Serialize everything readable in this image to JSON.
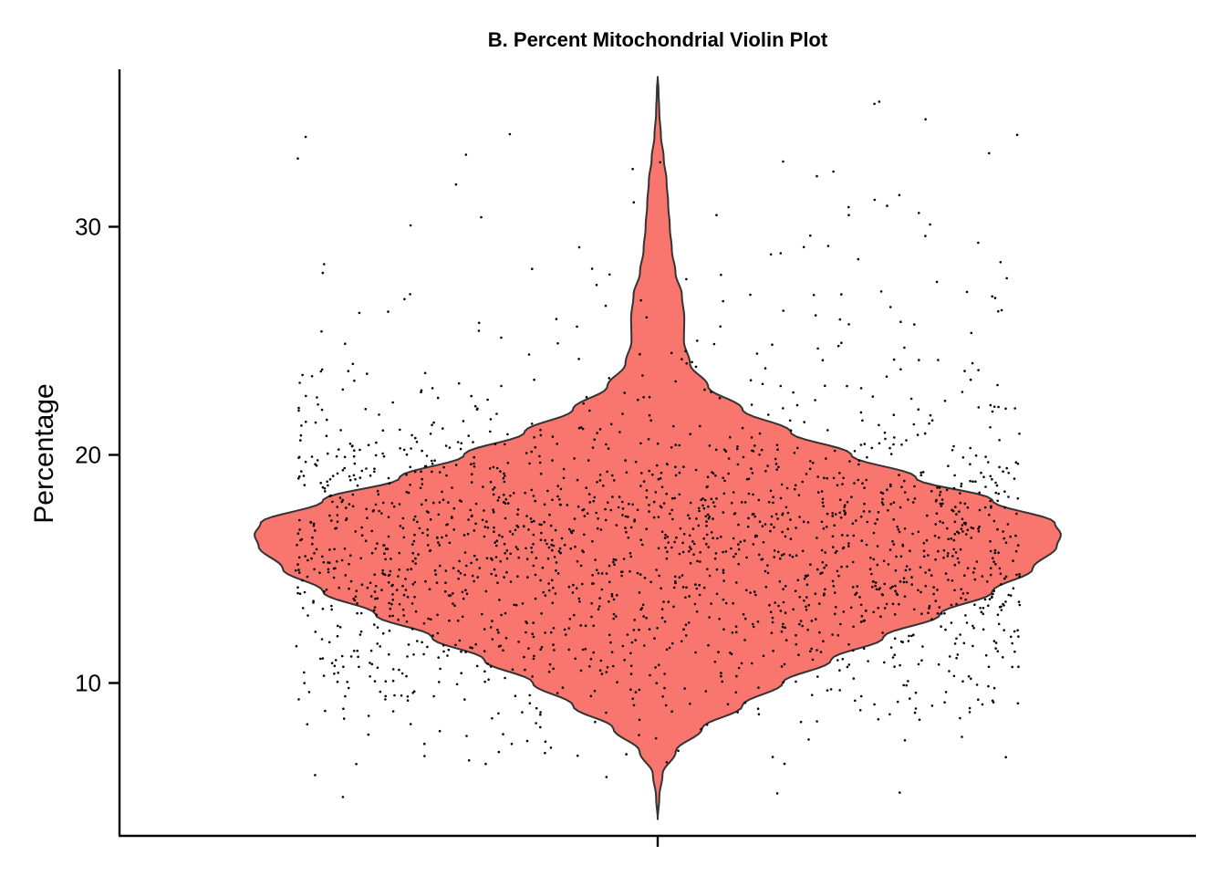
{
  "chart_data": {
    "type": "violin",
    "title": "B. Percent Mitochondrial Violin Plot",
    "xlabel": "",
    "ylabel": "Percentage",
    "ylim": [
      3.3,
      36.9
    ],
    "yticks": [
      10,
      20,
      30
    ],
    "ytick_labels": [
      "10",
      "20",
      "30"
    ],
    "categories": [
      ""
    ],
    "grid": false,
    "legend": "none",
    "fill_color": "#F8766D",
    "outline_color": "#333333",
    "point_color": "#000000",
    "series": [
      {
        "category": "",
        "min": 4.0,
        "max": 36.6,
        "mode": 16.5,
        "point_count": 2000,
        "density_profile": [
          {
            "y": 4.0,
            "density": 0.0
          },
          {
            "y": 5.0,
            "density": 0.004
          },
          {
            "y": 6.0,
            "density": 0.012
          },
          {
            "y": 7.0,
            "density": 0.045
          },
          {
            "y": 8.0,
            "density": 0.11
          },
          {
            "y": 9.0,
            "density": 0.21
          },
          {
            "y": 10.0,
            "density": 0.31
          },
          {
            "y": 11.0,
            "density": 0.43
          },
          {
            "y": 12.0,
            "density": 0.56
          },
          {
            "y": 13.0,
            "density": 0.7
          },
          {
            "y": 14.0,
            "density": 0.83
          },
          {
            "y": 15.0,
            "density": 0.93
          },
          {
            "y": 16.0,
            "density": 0.99
          },
          {
            "y": 16.5,
            "density": 1.0
          },
          {
            "y": 17.0,
            "density": 0.985
          },
          {
            "y": 18.0,
            "density": 0.83
          },
          {
            "y": 19.0,
            "density": 0.64
          },
          {
            "y": 20.0,
            "density": 0.48
          },
          {
            "y": 21.0,
            "density": 0.33
          },
          {
            "y": 22.0,
            "density": 0.21
          },
          {
            "y": 23.0,
            "density": 0.125
          },
          {
            "y": 24.0,
            "density": 0.08
          },
          {
            "y": 25.0,
            "density": 0.065
          },
          {
            "y": 26.0,
            "density": 0.066
          },
          {
            "y": 27.0,
            "density": 0.06
          },
          {
            "y": 28.0,
            "density": 0.044
          },
          {
            "y": 29.0,
            "density": 0.035
          },
          {
            "y": 30.0,
            "density": 0.03
          },
          {
            "y": 31.0,
            "density": 0.026
          },
          {
            "y": 32.0,
            "density": 0.022
          },
          {
            "y": 33.0,
            "density": 0.015
          },
          {
            "y": 34.0,
            "density": 0.008
          },
          {
            "y": 35.0,
            "density": 0.004
          },
          {
            "y": 36.0,
            "density": 0.002
          },
          {
            "y": 36.6,
            "density": 0.0
          }
        ]
      }
    ]
  }
}
